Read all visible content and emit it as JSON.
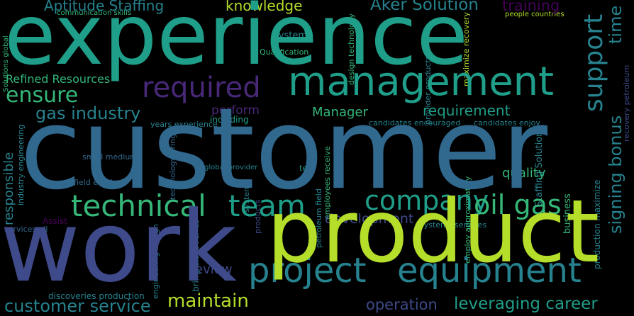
{
  "palette": {
    "background": "#000000",
    "dark_purple": "#440154",
    "purple": "#482878",
    "indigo": "#3e4a89",
    "blue": "#31688e",
    "teal_blue": "#26828e",
    "teal": "#1f9e89",
    "green_teal": "#35b779",
    "green": "#6ece58",
    "lime": "#b5de2b"
  },
  "words": {
    "experience": "experience",
    "customer": "customer",
    "work": "work",
    "product": "product",
    "management": "management",
    "technical": "technical",
    "team": "team",
    "company": "company",
    "oil_gas": "oil gas",
    "required": "required",
    "ensure": "ensure",
    "support": "support",
    "project": "project",
    "equipment": "equipment",
    "maintain": "maintain",
    "customer_service": "customer service",
    "gas_industry": "gas industry",
    "aptitude_staffing": "Aptitude Staffing",
    "knowledge": "knowledge",
    "aker_solution": "Aker Solution",
    "training": "training",
    "time": "time",
    "signing_bonus": "signing bonus",
    "refined_resources": "Refined Resources",
    "manager": "Manager",
    "requirement": "requirement",
    "perform": "perform",
    "system": "system",
    "qualification": "Qualification",
    "development": "development",
    "operation": "operation",
    "leveraging_career": "leveraging career",
    "review": "review",
    "quality": "quality",
    "responsible": "responsible",
    "years_experience": "years experience",
    "including": "including",
    "small_medium": "small medium",
    "global_provider": "global provider",
    "test": "test",
    "systems_services": "systems services",
    "discoveries_production": "discoveries production",
    "industry_engineering": "industry engineering",
    "field_employ": "field employ",
    "services_oil": "services oil",
    "assist": "Assist",
    "business": "business",
    "people_countries": "people countries",
    "communication_skills": "communication skills",
    "solutions_global": "Solutions global",
    "staffing_solutions": "Staffing Solutions",
    "candidates_encouraged": "candidates encouraged",
    "candidates_enjoy": "candidates enjoy",
    "provider_products": "provider products",
    "maximize_recovery": "maximize recovery",
    "design_technology": "design technology",
    "technology_bring": "technology bring",
    "engineering_design": "engineering design",
    "bring_discoveries": "bring discoveries",
    "petroleum_field": "petroleum field",
    "employees_receive": "employees receive",
    "employ_approximately": "employ approximately",
    "production_maximize": "production maximize",
    "recovery_petroleum": "recovery petroleum",
    "systems": "systems",
    "products": "products"
  }
}
